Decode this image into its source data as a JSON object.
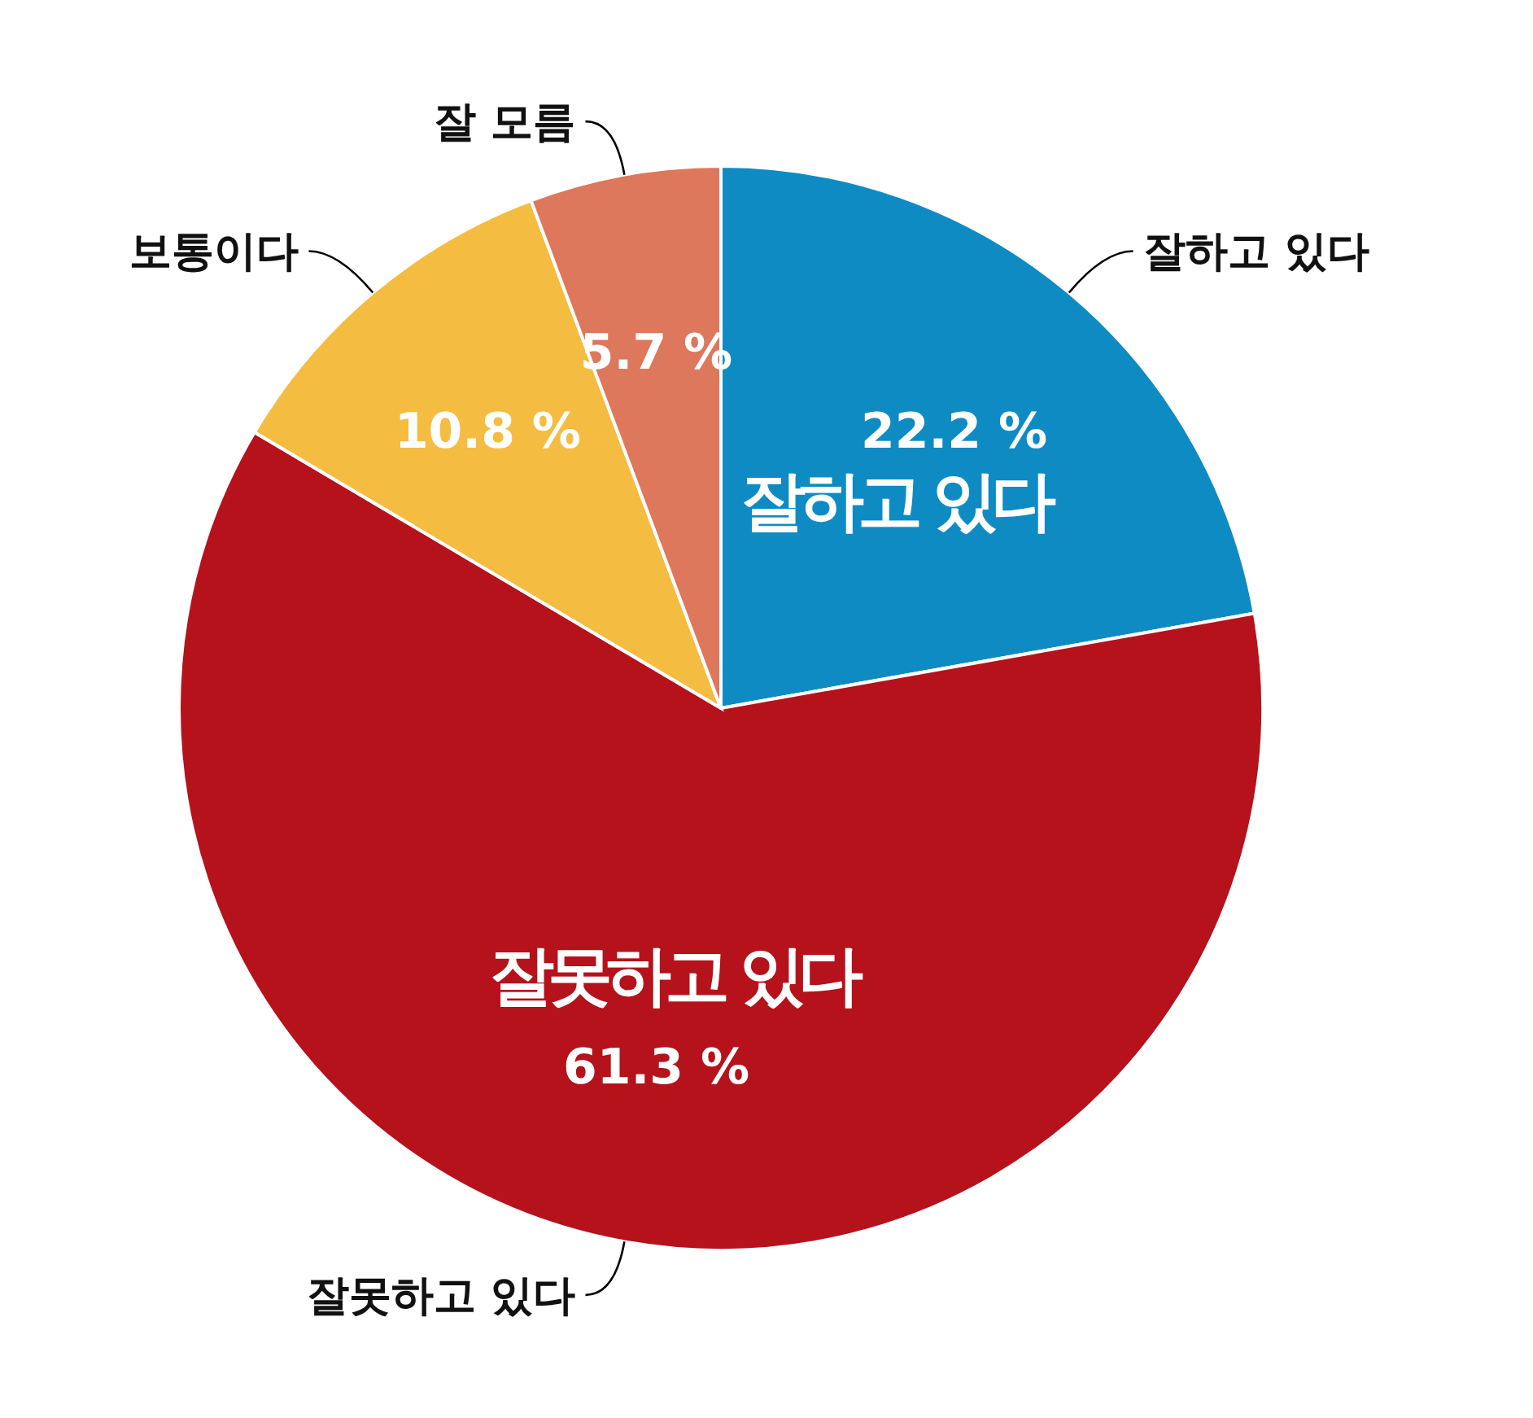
{
  "chart_data": {
    "type": "pie",
    "categories": [
      "잘하고 있다",
      "잘못하고 있다",
      "보통이다",
      "잘 모름"
    ],
    "values": [
      22.2,
      61.3,
      10.8,
      5.7
    ],
    "colors": [
      "#0f8bc4",
      "#b5121b",
      "#f4bc41",
      "#dd785c"
    ],
    "value_labels": [
      "22.2 %",
      "61.3 %",
      "10.8 %",
      "5.7 %"
    ],
    "annotations": [
      {
        "text": "잘하고 있다",
        "x": "잘하고 있다"
      },
      {
        "text": "잘못하고 있다",
        "x": "잘못하고 있다"
      }
    ],
    "legend": false
  }
}
